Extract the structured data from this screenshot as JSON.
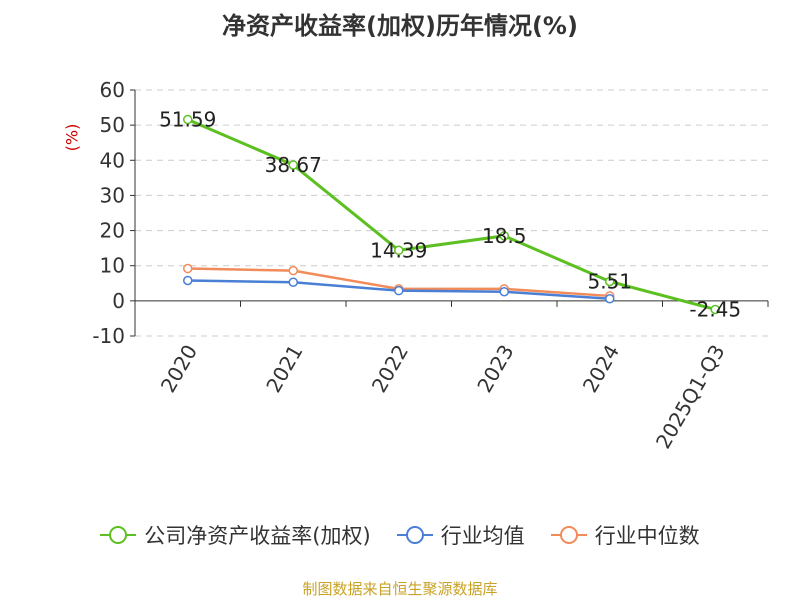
{
  "chart_data": {
    "type": "line",
    "title": "净资产收益率(加权)历年情况(%)",
    "ylabel": "(%)",
    "xlabel": "",
    "categories": [
      "2020",
      "2021",
      "2022",
      "2023",
      "2024",
      "2025Q1-Q3"
    ],
    "ylim": [
      -10,
      60
    ],
    "yticks": [
      -10,
      0,
      10,
      20,
      30,
      40,
      50,
      60
    ],
    "grid": true,
    "legend_position": "bottom",
    "series": [
      {
        "name": "公司净资产收益率(加权)",
        "color": "#5cc021",
        "values": [
          51.59,
          38.67,
          14.39,
          18.5,
          5.51,
          -2.45
        ],
        "labels": [
          "51.59",
          "38.67",
          "14.39",
          "18.5",
          "5.51",
          "-2.45"
        ]
      },
      {
        "name": "行业均值",
        "color": "#4a7fd6",
        "values": [
          5.8,
          5.3,
          2.9,
          2.6,
          0.6,
          null
        ]
      },
      {
        "name": "行业中位数",
        "color": "#f28b5a",
        "values": [
          9.2,
          8.6,
          3.4,
          3.4,
          1.4,
          null
        ]
      }
    ],
    "source": "制图数据来自恒生聚源数据库"
  }
}
